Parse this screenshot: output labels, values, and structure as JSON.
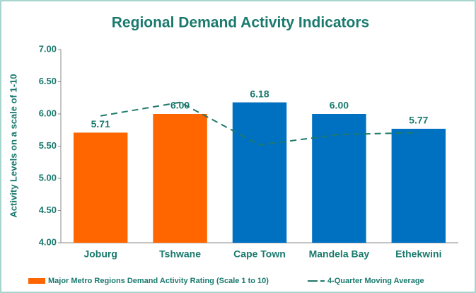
{
  "chart_data": {
    "type": "bar",
    "title": "Regional Demand Activity Indicators",
    "y_label": "Activity Levels on a scale of 1-10",
    "categories": [
      "Joburg",
      "Tshwane",
      "Cape Town",
      "Mandela Bay",
      "Ethekwini"
    ],
    "series": [
      {
        "name": "Major Metro Regions Demand Activity Rating (Scale 1 to 10)",
        "type": "bar",
        "color": "#ff6600",
        "colors": [
          "#ff6600",
          "#ff6600",
          "#0070c0",
          "#0070c0",
          "#0070c0"
        ],
        "values": [
          5.71,
          6.0,
          6.18,
          6.0,
          5.77
        ],
        "value_labels": [
          "5.71",
          "6.00",
          "6.18",
          "6.00",
          "5.77"
        ]
      },
      {
        "name": "4-Quarter Moving Average",
        "type": "line",
        "color": "#1f7a6a",
        "dashed": true,
        "values": [
          5.97,
          6.18,
          5.52,
          5.68,
          5.71
        ]
      }
    ],
    "ylim": [
      4,
      7
    ],
    "yticks": [
      {
        "value": 4,
        "label": "4.00"
      },
      {
        "value": 4.5,
        "label": "4.50"
      },
      {
        "value": 5,
        "label": "5.00"
      },
      {
        "value": 5.5,
        "label": "5.50"
      },
      {
        "value": 6,
        "label": "6.00"
      },
      {
        "value": 6.5,
        "label": "6.50"
      },
      {
        "value": 7,
        "label": "7.00"
      }
    ],
    "grid": false,
    "legend": "bottom"
  }
}
